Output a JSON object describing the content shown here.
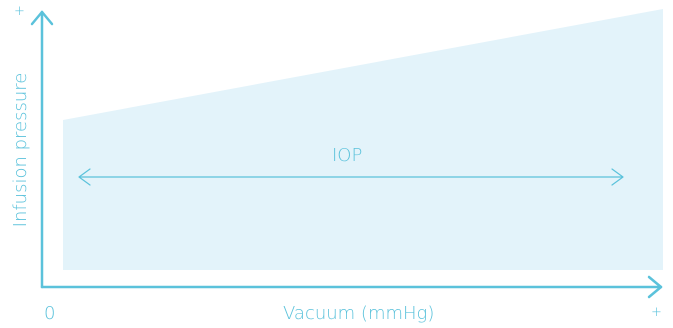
{
  "diagram": {
    "colors": {
      "axis": "#5bc2db",
      "region_fill": "#e3f3fa",
      "text": "#5bc2db"
    },
    "y_axis": {
      "label": "Infusion pressure",
      "end_label": "+"
    },
    "x_axis": {
      "label": "Vacuum (mmHg)",
      "start_label": "0",
      "end_label": "+"
    },
    "region_label": "IOP",
    "icons": {
      "y_axis_arrow": "arrow-up-icon",
      "x_axis_arrow": "arrow-right-icon",
      "range_arrow": "double-headed-arrow-icon"
    }
  }
}
